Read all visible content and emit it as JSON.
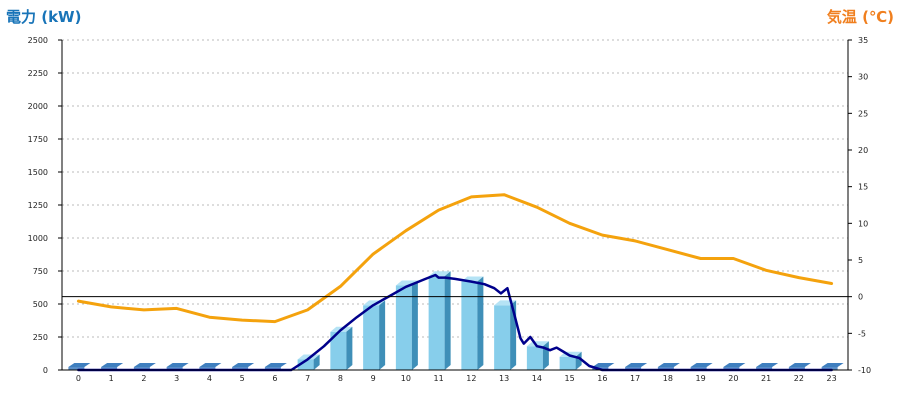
{
  "chart_data": {
    "type": "bar",
    "title": "",
    "ylabel_left": "電力 (kW)",
    "ylabel_right": "気温 (℃)",
    "categories": [
      "0",
      "1",
      "2",
      "3",
      "4",
      "5",
      "6",
      "7",
      "8",
      "9",
      "10",
      "11",
      "12",
      "13",
      "14",
      "15",
      "16",
      "17",
      "18",
      "19",
      "20",
      "21",
      "22",
      "23"
    ],
    "ylim_left": [
      0,
      2500
    ],
    "yticks_left": [
      "0",
      "250",
      "500",
      "750",
      "1000",
      "1250",
      "1500",
      "1750",
      "2000",
      "2250",
      "2500"
    ],
    "ylim_right": [
      -10,
      35
    ],
    "yticks_right": [
      "-10",
      "-5",
      "0",
      "5",
      "10",
      "15",
      "20",
      "25",
      "30",
      "35"
    ],
    "grid": true,
    "series": [
      {
        "kind": "bar",
        "axis": "left",
        "values": [
          10,
          10,
          10,
          10,
          10,
          10,
          10,
          80,
          290,
          490,
          640,
          710,
          670,
          490,
          180,
          100,
          10,
          10,
          10,
          10,
          10,
          10,
          10,
          10
        ],
        "color": "#87ceeb"
      },
      {
        "kind": "line",
        "axis": "right",
        "x": [
          0,
          1,
          2,
          3,
          4,
          5,
          6,
          7,
          8,
          9,
          10,
          11,
          12,
          13,
          14,
          15,
          16,
          17,
          18,
          19,
          20,
          21,
          22,
          23
        ],
        "values": [
          -0.6,
          -1.4,
          -1.8,
          -1.6,
          -2.8,
          -3.2,
          -3.4,
          -1.8,
          1.4,
          5.8,
          9.0,
          11.8,
          13.6,
          13.9,
          12.2,
          10.0,
          8.4,
          7.6,
          6.4,
          5.2,
          5.2,
          3.6,
          2.6,
          1.8
        ],
        "color": "#f4a20d"
      },
      {
        "kind": "line",
        "axis": "left",
        "x": [
          0,
          6.5,
          7,
          7.5,
          8,
          8.5,
          9,
          9.5,
          10,
          10.3,
          10.6,
          10.9,
          11.0,
          11.2,
          11.5,
          12,
          12.4,
          12.7,
          12.9,
          13.1,
          13.3,
          13.5,
          13.6,
          13.8,
          14,
          14.2,
          14.4,
          14.6,
          14.8,
          15,
          15.3,
          15.6,
          16,
          23
        ],
        "values": [
          0,
          0,
          80,
          180,
          300,
          400,
          490,
          560,
          630,
          660,
          690,
          720,
          700,
          700,
          690,
          670,
          650,
          620,
          580,
          620,
          430,
          240,
          200,
          250,
          180,
          170,
          150,
          170,
          140,
          110,
          90,
          30,
          0,
          0
        ],
        "color": "#00008b"
      }
    ]
  }
}
